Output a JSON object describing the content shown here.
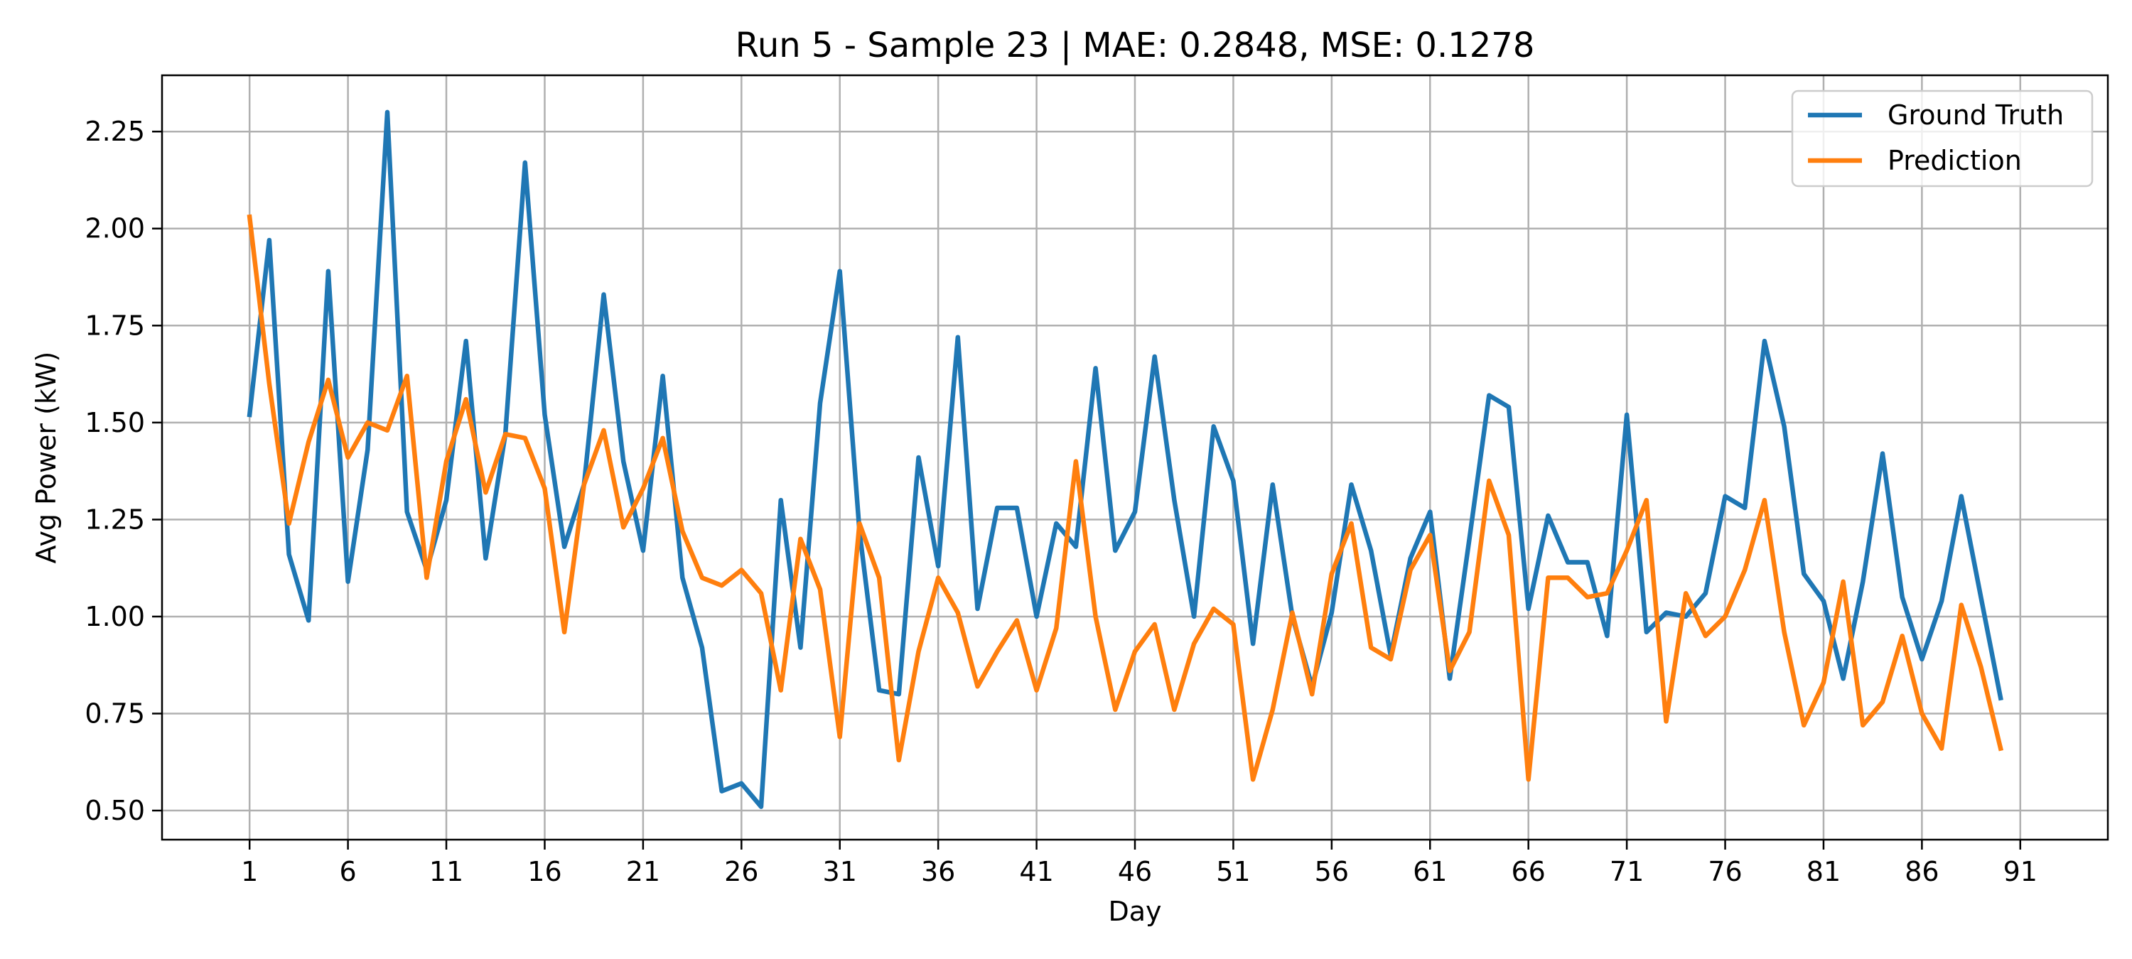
{
  "chart_data": {
    "type": "line",
    "title": "Run 5 - Sample 23 | MAE: 0.2848, MSE: 0.1278",
    "xlabel": "Day",
    "ylabel": "Avg Power (kW)",
    "xlim": [
      -3.45,
      95.45
    ],
    "ylim": [
      0.425,
      2.395
    ],
    "xticks": [
      1,
      6,
      11,
      16,
      21,
      26,
      31,
      36,
      41,
      46,
      51,
      56,
      61,
      66,
      71,
      76,
      81,
      86,
      91
    ],
    "xtick_labels": [
      "1",
      "6",
      "11",
      "16",
      "21",
      "26",
      "31",
      "36",
      "41",
      "46",
      "51",
      "56",
      "61",
      "66",
      "71",
      "76",
      "81",
      "86",
      "91"
    ],
    "yticks": [
      0.5,
      0.75,
      1.0,
      1.25,
      1.5,
      1.75,
      2.0,
      2.25
    ],
    "ytick_labels": [
      "0.50",
      "0.75",
      "1.00",
      "1.25",
      "1.50",
      "1.75",
      "2.00",
      "2.25"
    ],
    "grid": true,
    "legend_position": "upper right",
    "x": [
      1,
      2,
      3,
      4,
      5,
      6,
      7,
      8,
      9,
      10,
      11,
      12,
      13,
      14,
      15,
      16,
      17,
      18,
      19,
      20,
      21,
      22,
      23,
      24,
      25,
      26,
      27,
      28,
      29,
      30,
      31,
      32,
      33,
      34,
      35,
      36,
      37,
      38,
      39,
      40,
      41,
      42,
      43,
      44,
      45,
      46,
      47,
      48,
      49,
      50,
      51,
      52,
      53,
      54,
      55,
      56,
      57,
      58,
      59,
      60,
      61,
      62,
      63,
      64,
      65,
      66,
      67,
      68,
      69,
      70,
      71,
      72,
      73,
      74,
      75,
      76,
      77,
      78,
      79,
      80,
      81,
      82,
      83,
      84,
      85,
      86,
      87,
      88,
      89,
      90
    ],
    "series": [
      {
        "name": "Ground Truth",
        "color": "#1f77b4",
        "values": [
          1.52,
          1.97,
          1.16,
          0.99,
          1.89,
          1.09,
          1.43,
          2.3,
          1.27,
          1.12,
          1.3,
          1.71,
          1.15,
          1.47,
          2.17,
          1.52,
          1.18,
          1.34,
          1.83,
          1.4,
          1.17,
          1.62,
          1.1,
          0.92,
          0.55,
          0.57,
          0.51,
          1.3,
          0.92,
          1.55,
          1.89,
          1.22,
          0.81,
          0.8,
          1.41,
          1.13,
          1.72,
          1.02,
          1.28,
          1.28,
          1.0,
          1.24,
          1.18,
          1.64,
          1.17,
          1.27,
          1.67,
          1.3,
          1.0,
          1.49,
          1.35,
          0.93,
          1.34,
          1.0,
          0.82,
          1.01,
          1.34,
          1.17,
          0.9,
          1.15,
          1.27,
          0.84,
          1.2,
          1.57,
          1.54,
          1.02,
          1.26,
          1.14,
          1.14,
          0.95,
          1.52,
          0.96,
          1.01,
          1.0,
          1.06,
          1.31,
          1.28,
          1.71,
          1.49,
          1.11,
          1.04,
          0.84,
          1.09,
          1.42,
          1.05,
          0.89,
          1.04,
          1.31,
          1.05,
          0.79
        ]
      },
      {
        "name": "Prediction",
        "color": "#ff7f0e",
        "values": [
          2.03,
          1.6,
          1.24,
          1.45,
          1.61,
          1.41,
          1.5,
          1.48,
          1.62,
          1.1,
          1.4,
          1.56,
          1.32,
          1.47,
          1.46,
          1.33,
          0.96,
          1.34,
          1.48,
          1.23,
          1.33,
          1.46,
          1.22,
          1.1,
          1.08,
          1.12,
          1.06,
          0.81,
          1.2,
          1.07,
          0.69,
          1.24,
          1.1,
          0.63,
          0.91,
          1.1,
          1.01,
          0.82,
          0.91,
          0.99,
          0.81,
          0.97,
          1.4,
          1.0,
          0.76,
          0.91,
          0.98,
          0.76,
          0.93,
          1.02,
          0.98,
          0.58,
          0.76,
          1.01,
          0.8,
          1.11,
          1.24,
          0.92,
          0.89,
          1.12,
          1.21,
          0.86,
          0.96,
          1.35,
          1.21,
          0.58,
          1.1,
          1.1,
          1.05,
          1.06,
          1.17,
          1.3,
          0.73,
          1.06,
          0.95,
          1.0,
          1.12,
          1.3,
          0.96,
          0.72,
          0.83,
          1.09,
          0.72,
          0.78,
          0.95,
          0.75,
          0.66,
          1.03,
          0.87,
          0.66
        ]
      }
    ]
  }
}
